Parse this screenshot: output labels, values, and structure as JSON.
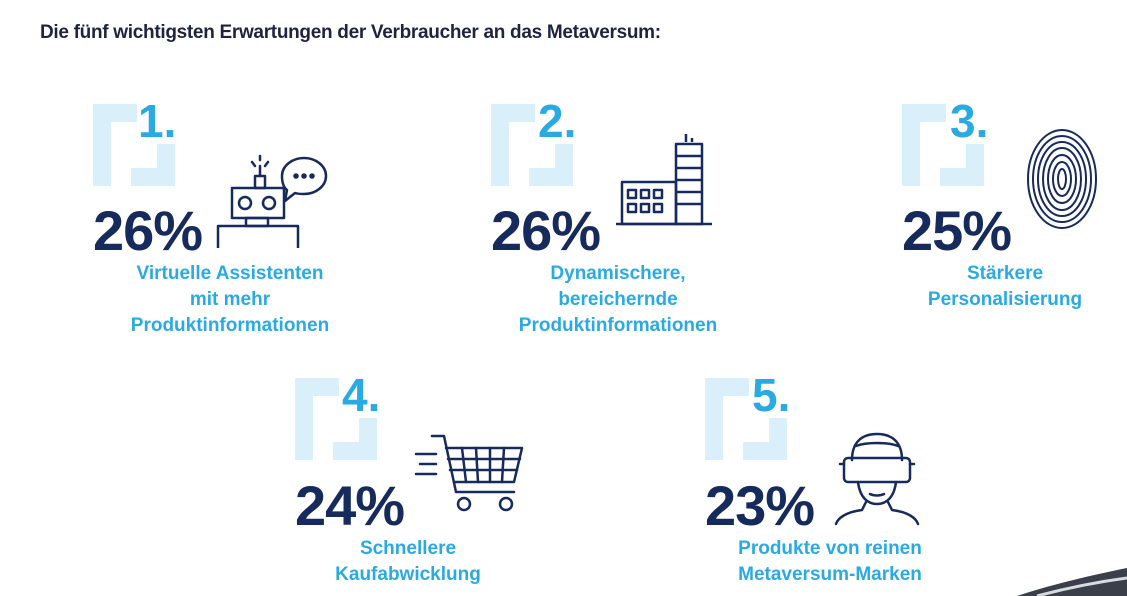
{
  "title": "Die fünf wichtigsten Erwartungen der Verbraucher an das Metaversum:",
  "colors": {
    "accent": "#2aaae2",
    "dark": "#172a5c",
    "bracket": "#d9f0fa"
  },
  "items": [
    {
      "rank": "1.",
      "percent": "26%",
      "label_lines": [
        "Virtuelle Assistenten",
        "mit mehr",
        "Produktinformationen"
      ],
      "icon": "robot-assistant-icon"
    },
    {
      "rank": "2.",
      "percent": "26%",
      "label_lines": [
        "Dynamischere,",
        "bereichernde",
        "Produktinformationen"
      ],
      "icon": "factory-icon"
    },
    {
      "rank": "3.",
      "percent": "25%",
      "label_lines": [
        "Stärkere",
        "Personalisierung"
      ],
      "icon": "fingerprint-icon"
    },
    {
      "rank": "4.",
      "percent": "24%",
      "label_lines": [
        "Schnellere",
        "Kaufabwicklung"
      ],
      "icon": "shopping-cart-icon"
    },
    {
      "rank": "5.",
      "percent": "23%",
      "label_lines": [
        "Produkte von reinen",
        "Metaversum-Marken"
      ],
      "icon": "vr-headset-icon"
    }
  ]
}
